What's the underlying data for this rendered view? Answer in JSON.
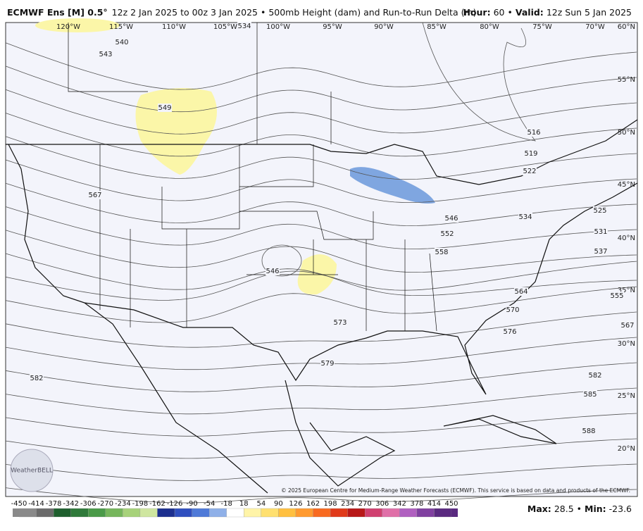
{
  "header": {
    "model": "ECMWF Ens [M] 0.5°",
    "run": "12z 2 Jan 2025 to 00z 3 Jan 2025 • 500mb Height (dam) and Run-to-Run Delta (m)",
    "hour_label": "Hour:",
    "hour": "60",
    "valid_label": "Valid:",
    "valid": "12z Sun 5 Jan 2025"
  },
  "map": {
    "longitudes": [
      "120°W",
      "115°W",
      "110°W",
      "105°W",
      "100°W",
      "95°W",
      "90°W",
      "85°W",
      "80°W",
      "75°W",
      "70°W"
    ],
    "latitudes": [
      "60°N",
      "55°N",
      "50°N",
      "45°N",
      "40°N",
      "35°N",
      "30°N",
      "25°N",
      "20°N"
    ],
    "contour_labels": [
      540,
      543,
      549,
      534,
      567,
      546,
      573,
      579,
      582,
      516,
      519,
      522,
      525,
      531,
      534,
      537,
      546,
      552,
      558,
      555,
      564,
      570,
      567,
      576,
      582,
      585,
      588
    ],
    "logo": "WeatherBELL",
    "copyright": "© 2025 European Centre for Medium-Range Weather Forecasts (ECMWF). This service is based on data and products of the ECMWF."
  },
  "colorbar": {
    "ticks": [
      -450,
      -414,
      -378,
      -342,
      -306,
      -270,
      -234,
      -198,
      -162,
      -126,
      -90,
      -54,
      -18,
      18,
      54,
      90,
      126,
      162,
      198,
      234,
      270,
      306,
      342,
      378,
      414,
      450
    ],
    "colors": [
      "#8a8a8a",
      "#6b6b6b",
      "#1f5f2e",
      "#2f7a3a",
      "#4a9a48",
      "#76b65c",
      "#a7d27a",
      "#cfe6a0",
      "#1c2f8f",
      "#2f4fbf",
      "#4f7ad8",
      "#8fb0e8",
      "#ffffff",
      "#fff4a8",
      "#ffe070",
      "#ffc040",
      "#ff9a30",
      "#f86a20",
      "#e03a1a",
      "#b81818",
      "#d04070",
      "#e070a8",
      "#b060c0",
      "#8040a0",
      "#5a2a80"
    ]
  },
  "footer": {
    "max_label": "Max:",
    "max": 28.5,
    "min_label": "Min:",
    "min": -23.6
  }
}
